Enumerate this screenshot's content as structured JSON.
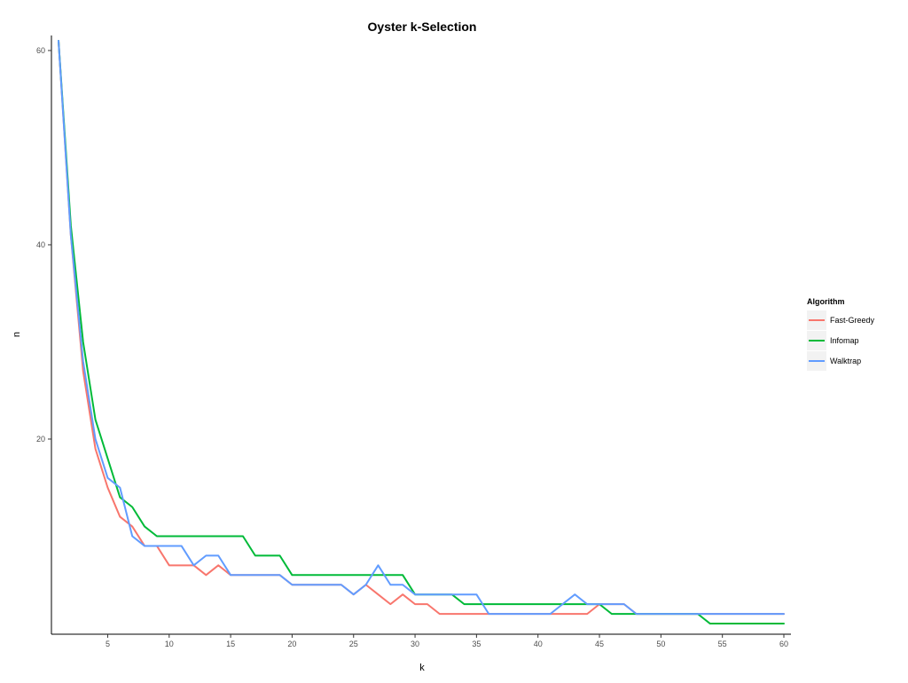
{
  "chart_data": {
    "type": "line",
    "title": "Oyster k-Selection",
    "xlabel": "k",
    "ylabel": "n",
    "xlim": [
      1,
      60
    ],
    "ylim": [
      0,
      61
    ],
    "x_ticks": [
      5,
      10,
      15,
      20,
      25,
      30,
      35,
      40,
      45,
      50,
      55,
      60
    ],
    "y_ticks": [
      20,
      40,
      60
    ],
    "grid": false,
    "legend": {
      "title": "Algorithm",
      "position": "right"
    },
    "x": [
      1,
      2,
      3,
      4,
      5,
      6,
      7,
      8,
      9,
      10,
      11,
      12,
      13,
      14,
      15,
      16,
      17,
      18,
      19,
      20,
      21,
      22,
      23,
      24,
      25,
      26,
      27,
      28,
      29,
      30,
      31,
      32,
      33,
      34,
      35,
      36,
      37,
      38,
      39,
      40,
      41,
      42,
      43,
      44,
      45,
      46,
      47,
      48,
      49,
      50,
      51,
      52,
      53,
      54,
      55,
      56,
      57,
      58,
      59,
      60
    ],
    "series": [
      {
        "name": "Fast-Greedy",
        "color": "#F8766D",
        "values": [
          61,
          41,
          27,
          19,
          15,
          12,
          11,
          9,
          9,
          7,
          7,
          7,
          6,
          7,
          6,
          6,
          6,
          6,
          6,
          5,
          5,
          5,
          5,
          5,
          4,
          5,
          4,
          3,
          4,
          3,
          3,
          2,
          2,
          2,
          2,
          2,
          2,
          2,
          2,
          2,
          2,
          2,
          2,
          2,
          3,
          3,
          3,
          2,
          2,
          2,
          2,
          2,
          2,
          2,
          2,
          2,
          2,
          2,
          2,
          2
        ]
      },
      {
        "name": "Infomap",
        "color": "#00BA38",
        "values": [
          61,
          42,
          30,
          22,
          18,
          14,
          13,
          11,
          10,
          10,
          10,
          10,
          10,
          10,
          10,
          10,
          8,
          8,
          8,
          6,
          6,
          6,
          6,
          6,
          6,
          6,
          6,
          6,
          6,
          4,
          4,
          4,
          4,
          3,
          3,
          3,
          3,
          3,
          3,
          3,
          3,
          3,
          3,
          3,
          3,
          2,
          2,
          2,
          2,
          2,
          2,
          2,
          2,
          1,
          1,
          1,
          1,
          1,
          1,
          1
        ]
      },
      {
        "name": "Walktrap",
        "color": "#619CFF",
        "values": [
          61,
          41,
          28,
          20,
          16,
          15,
          10,
          9,
          9,
          9,
          9,
          7,
          8,
          8,
          6,
          6,
          6,
          6,
          6,
          5,
          5,
          5,
          5,
          5,
          4,
          5,
          7,
          5,
          5,
          4,
          4,
          4,
          4,
          4,
          4,
          2,
          2,
          2,
          2,
          2,
          2,
          3,
          4,
          3,
          3,
          3,
          3,
          2,
          2,
          2,
          2,
          2,
          2,
          2,
          2,
          2,
          2,
          2,
          2,
          2
        ]
      }
    ]
  }
}
